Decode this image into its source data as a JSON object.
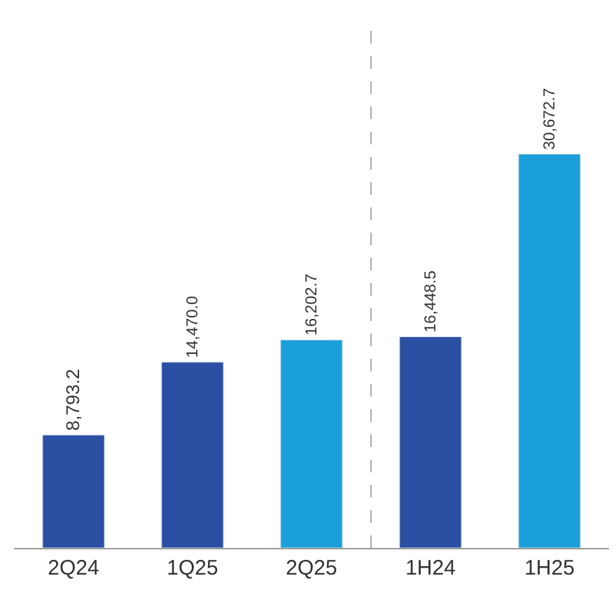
{
  "chart_data": {
    "type": "bar",
    "categories": [
      "2Q24",
      "1Q25",
      "2Q25",
      "1H24",
      "1H25"
    ],
    "values": [
      8793.2,
      14470.0,
      16202.7,
      16448.5,
      30672.7
    ],
    "value_labels": [
      "8,793.2",
      "14,470.0",
      "16,202.7",
      "16,448.5",
      "30,672.7"
    ],
    "colors": [
      "#2a4fa3",
      "#2a4fa3",
      "#1a9fdb",
      "#2a4fa3",
      "#1a9fdb"
    ],
    "tick_labels": "x"
  }
}
